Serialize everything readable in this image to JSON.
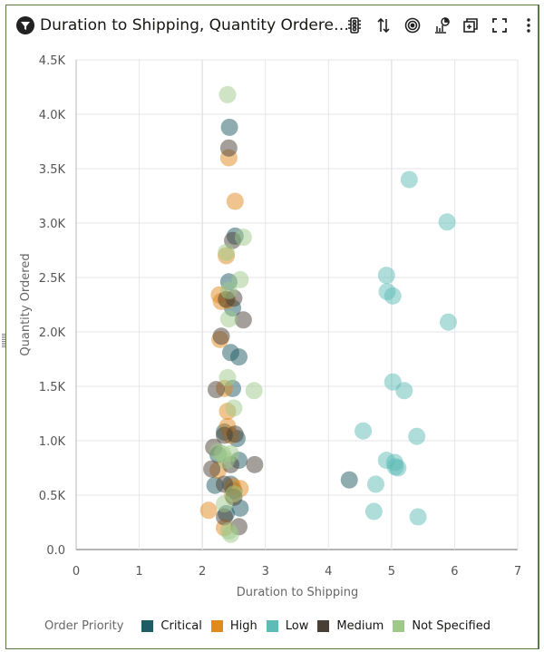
{
  "header": {
    "title": "Duration to Shipping, Quantity Ordere…",
    "title_icon": "filter-icon",
    "toolbar": [
      {
        "name": "traffic-light-icon",
        "label": "Conditional formatting"
      },
      {
        "name": "sort-icon",
        "label": "Sort"
      },
      {
        "name": "target-icon",
        "label": "Focus"
      },
      {
        "name": "chart-type-icon",
        "label": "Change chart type"
      },
      {
        "name": "duplicate-icon",
        "label": "Duplicate"
      },
      {
        "name": "fullscreen-icon",
        "label": "Maximize"
      },
      {
        "name": "more-icon",
        "label": "More"
      }
    ]
  },
  "chart_data": {
    "type": "scatter",
    "title": "Duration to Shipping, Quantity Ordere…",
    "xlabel": "Duration to Shipping",
    "ylabel": "Quantity Ordered",
    "xlim": [
      0,
      7
    ],
    "ylim": [
      0,
      4500
    ],
    "x_ticks": [
      "0",
      "1",
      "2",
      "3",
      "4",
      "5",
      "6",
      "7"
    ],
    "y_ticks": [
      "0.0",
      "0.5K",
      "1.0K",
      "1.5K",
      "2.0K",
      "2.5K",
      "3.0K",
      "3.5K",
      "4.0K",
      "4.5K"
    ],
    "grid": true,
    "legend_title": "Order Priority",
    "legend_position": "bottom",
    "series": [
      {
        "name": "Critical",
        "color": "#1f5c63",
        "points": [
          [
            2.43,
            3880
          ],
          [
            2.52,
            2880
          ],
          [
            2.42,
            2460
          ],
          [
            2.48,
            2220
          ],
          [
            2.45,
            1810
          ],
          [
            2.58,
            1770
          ],
          [
            2.48,
            1480
          ],
          [
            2.35,
            1080
          ],
          [
            2.55,
            1020
          ],
          [
            2.25,
            870
          ],
          [
            2.58,
            820
          ],
          [
            2.2,
            590
          ],
          [
            2.45,
            600
          ],
          [
            2.6,
            380
          ],
          [
            2.38,
            330
          ],
          [
            4.33,
            640
          ],
          [
            2.5,
            540
          ]
        ]
      },
      {
        "name": "High",
        "color": "#e08a1e",
        "points": [
          [
            2.42,
            3600
          ],
          [
            2.52,
            3200
          ],
          [
            2.38,
            2700
          ],
          [
            2.27,
            2340
          ],
          [
            2.3,
            2280
          ],
          [
            2.4,
            2290
          ],
          [
            2.28,
            1930
          ],
          [
            2.35,
            1480
          ],
          [
            2.4,
            1270
          ],
          [
            2.4,
            1130
          ],
          [
            2.45,
            1050
          ],
          [
            2.25,
            730
          ],
          [
            2.6,
            560
          ],
          [
            2.48,
            500
          ],
          [
            2.1,
            360
          ],
          [
            2.35,
            200
          ],
          [
            2.48,
            580
          ]
        ]
      },
      {
        "name": "Low",
        "color": "#5ebbb5",
        "points": [
          [
            5.28,
            3400
          ],
          [
            5.88,
            3010
          ],
          [
            4.92,
            2520
          ],
          [
            4.93,
            2370
          ],
          [
            5.02,
            2330
          ],
          [
            5.9,
            2090
          ],
          [
            5.02,
            1540
          ],
          [
            5.2,
            1460
          ],
          [
            4.55,
            1090
          ],
          [
            5.4,
            1040
          ],
          [
            4.92,
            820
          ],
          [
            5.05,
            800
          ],
          [
            5.1,
            750
          ],
          [
            5.06,
            760
          ],
          [
            4.75,
            600
          ],
          [
            4.72,
            350
          ],
          [
            5.42,
            300
          ]
        ]
      },
      {
        "name": "Medium",
        "color": "#4a3f35",
        "points": [
          [
            2.42,
            3690
          ],
          [
            2.48,
            2840
          ],
          [
            2.38,
            2300
          ],
          [
            2.5,
            2310
          ],
          [
            2.65,
            2110
          ],
          [
            2.3,
            1960
          ],
          [
            2.22,
            1470
          ],
          [
            2.35,
            1050
          ],
          [
            2.52,
            1060
          ],
          [
            2.18,
            940
          ],
          [
            2.45,
            780
          ],
          [
            2.83,
            780
          ],
          [
            2.15,
            740
          ],
          [
            2.35,
            600
          ],
          [
            2.5,
            480
          ],
          [
            2.35,
            300
          ],
          [
            2.58,
            210
          ]
        ]
      },
      {
        "name": "Not Specified",
        "color": "#9ec98a",
        "points": [
          [
            2.4,
            4180
          ],
          [
            2.65,
            2870
          ],
          [
            2.38,
            2730
          ],
          [
            2.6,
            2480
          ],
          [
            2.42,
            2380
          ],
          [
            2.42,
            2120
          ],
          [
            2.4,
            1580
          ],
          [
            2.5,
            1300
          ],
          [
            2.82,
            1460
          ],
          [
            2.25,
            900
          ],
          [
            2.32,
            880
          ],
          [
            2.45,
            880
          ],
          [
            2.38,
            820
          ],
          [
            2.5,
            510
          ],
          [
            2.35,
            420
          ],
          [
            2.42,
            170
          ],
          [
            2.45,
            140
          ]
        ]
      }
    ]
  },
  "legend": {
    "title": "Order Priority",
    "items": [
      {
        "label": "Critical",
        "color": "#1f5c63"
      },
      {
        "label": "High",
        "color": "#e08a1e"
      },
      {
        "label": "Low",
        "color": "#5ebbb5"
      },
      {
        "label": "Medium",
        "color": "#4a3f35"
      },
      {
        "label": "Not Specified",
        "color": "#9ec98a"
      }
    ]
  }
}
